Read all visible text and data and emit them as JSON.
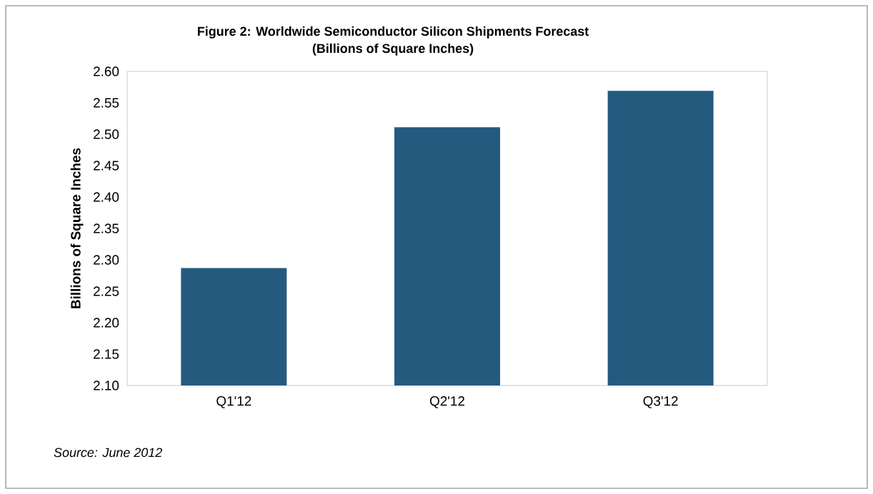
{
  "chart_data": {
    "type": "bar",
    "title": "Figure 2: Worldwide Semiconductor Silicon Shipments Forecast",
    "subtitle": "(Billions of Square Inches)",
    "ylabel": "Billions of Square Inches",
    "categories": [
      "Q1'12",
      "Q2'12",
      "Q3'12"
    ],
    "values": [
      2.287,
      2.511,
      2.569
    ],
    "color": "#255a7f",
    "ylim": [
      2.1,
      2.6
    ],
    "yticks": [
      {
        "value": 2.1,
        "label": "2.10"
      },
      {
        "value": 2.15,
        "label": "2.15"
      },
      {
        "value": 2.2,
        "label": "2.20"
      },
      {
        "value": 2.25,
        "label": "2.25"
      },
      {
        "value": 2.3,
        "label": "2.30"
      },
      {
        "value": 2.35,
        "label": "2.35"
      },
      {
        "value": 2.4,
        "label": "2.40"
      },
      {
        "value": 2.45,
        "label": "2.45"
      },
      {
        "value": 2.5,
        "label": "2.50"
      },
      {
        "value": 2.55,
        "label": "2.55"
      },
      {
        "value": 2.6,
        "label": "2.60"
      }
    ],
    "annotations": [
      "Source: June 2012"
    ]
  }
}
